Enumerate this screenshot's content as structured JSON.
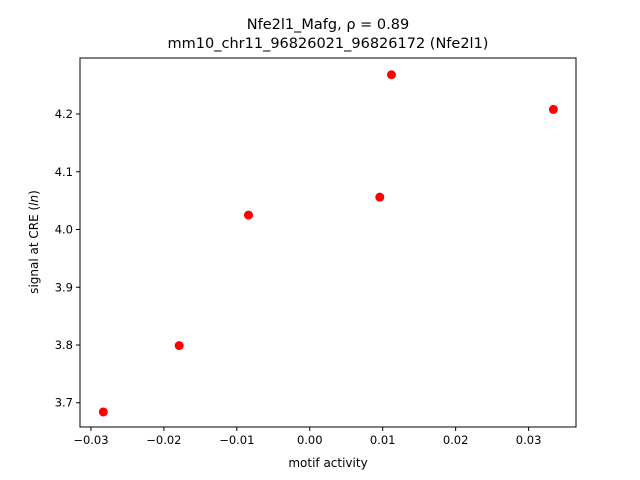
{
  "chart_data": {
    "type": "scatter",
    "title_line1": "Nfe2l1_Mafg, ρ = 0.89",
    "title_line2": "mm10_chr11_96826021_96826172 (Nfe2l1)",
    "xlabel": "motif activity",
    "ylabel_main": "signal at CRE (",
    "ylabel_italic": "ln",
    "ylabel_end": ")",
    "xlim": [
      -0.0315,
      0.0365
    ],
    "ylim": [
      3.658,
      4.297
    ],
    "xticks": [
      -0.03,
      -0.02,
      -0.01,
      0.0,
      0.01,
      0.02,
      0.03
    ],
    "xtick_labels": [
      "−0.03",
      "−0.02",
      "−0.01",
      "0.00",
      "0.01",
      "0.02",
      "0.03"
    ],
    "yticks": [
      3.7,
      3.8,
      3.9,
      4.0,
      4.1,
      4.2
    ],
    "ytick_labels": [
      "3.7",
      "3.8",
      "3.9",
      "4.0",
      "4.1",
      "4.2"
    ],
    "grid": false,
    "marker_color": "#ff0000",
    "points": [
      {
        "x": -0.0283,
        "y": 3.684
      },
      {
        "x": -0.0179,
        "y": 3.799
      },
      {
        "x": -0.0084,
        "y": 4.025
      },
      {
        "x": 0.0096,
        "y": 4.056
      },
      {
        "x": 0.0112,
        "y": 4.268
      },
      {
        "x": 0.0334,
        "y": 4.208
      }
    ]
  }
}
